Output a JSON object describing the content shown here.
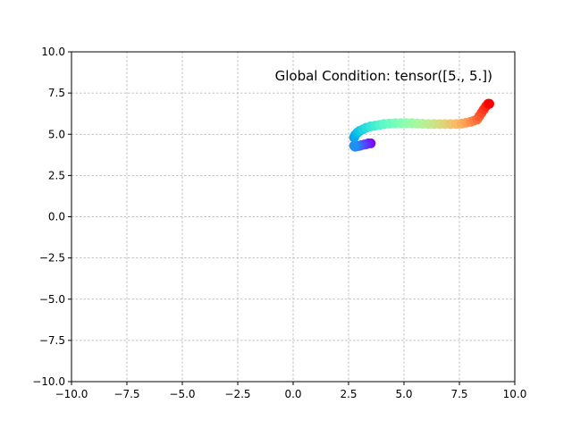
{
  "chart_data": {
    "type": "scatter",
    "title": "",
    "xlabel": "",
    "ylabel": "",
    "xlim": [
      -10,
      10
    ],
    "ylim": [
      -10,
      10
    ],
    "grid": true,
    "xticks": [
      "−10.0",
      "−7.5",
      "−5.0",
      "−2.5",
      "0.0",
      "2.5",
      "5.0",
      "7.5",
      "10.0"
    ],
    "yticks": [
      "−10.0",
      "−7.5",
      "−5.0",
      "−2.5",
      "0.0",
      "2.5",
      "5.0",
      "7.5",
      "10.0"
    ],
    "annotation": "Global Condition: tensor([5., 5.])",
    "colormap": "rainbow",
    "point_colors_note": "points colored by sequence order, violet (first) to red (last)",
    "series": [
      {
        "x": [
          3.5,
          3.4,
          3.3,
          3.2,
          3.1,
          3.0,
          2.9,
          2.8,
          2.75,
          2.75,
          2.8,
          2.9,
          3.0,
          3.15,
          3.3,
          3.5,
          3.7,
          3.9,
          4.1,
          4.35,
          4.6,
          4.85,
          5.1,
          5.35,
          5.6,
          5.85,
          6.1,
          6.35,
          6.6,
          6.85,
          7.1,
          7.35,
          7.6,
          7.8,
          8.0,
          8.15,
          8.3,
          8.4,
          8.5,
          8.6,
          8.7,
          8.8,
          8.85
        ],
        "y": [
          4.45,
          4.45,
          4.4,
          4.38,
          4.35,
          4.3,
          4.28,
          4.25,
          4.3,
          4.8,
          4.95,
          5.1,
          5.2,
          5.3,
          5.4,
          5.48,
          5.52,
          5.57,
          5.62,
          5.65,
          5.67,
          5.68,
          5.68,
          5.68,
          5.66,
          5.64,
          5.62,
          5.62,
          5.62,
          5.62,
          5.62,
          5.62,
          5.65,
          5.7,
          5.75,
          5.82,
          5.9,
          6.1,
          6.3,
          6.5,
          6.7,
          6.85,
          6.85
        ]
      }
    ]
  }
}
